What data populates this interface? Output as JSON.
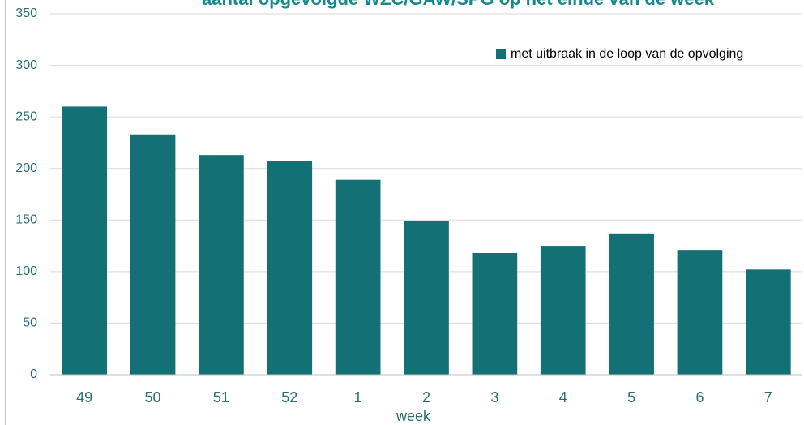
{
  "chart_data": {
    "type": "bar",
    "title": "aantal opgevolgde WZC/GAW/SPG op het einde van de week",
    "xlabel": "week",
    "categories": [
      "49",
      "50",
      "51",
      "52",
      "1",
      "2",
      "3",
      "4",
      "5",
      "6",
      "7"
    ],
    "series": [
      {
        "name": "met uitbraak in de loop van de opvolging",
        "color": "#137075",
        "values": [
          260,
          233,
          213,
          207,
          189,
          149,
          118,
          125,
          137,
          121,
          102
        ]
      }
    ],
    "ylim": [
      0,
      350
    ],
    "yticks": [
      0,
      50,
      100,
      150,
      200,
      250,
      300,
      350
    ],
    "grid": true,
    "legend": "top-right"
  }
}
